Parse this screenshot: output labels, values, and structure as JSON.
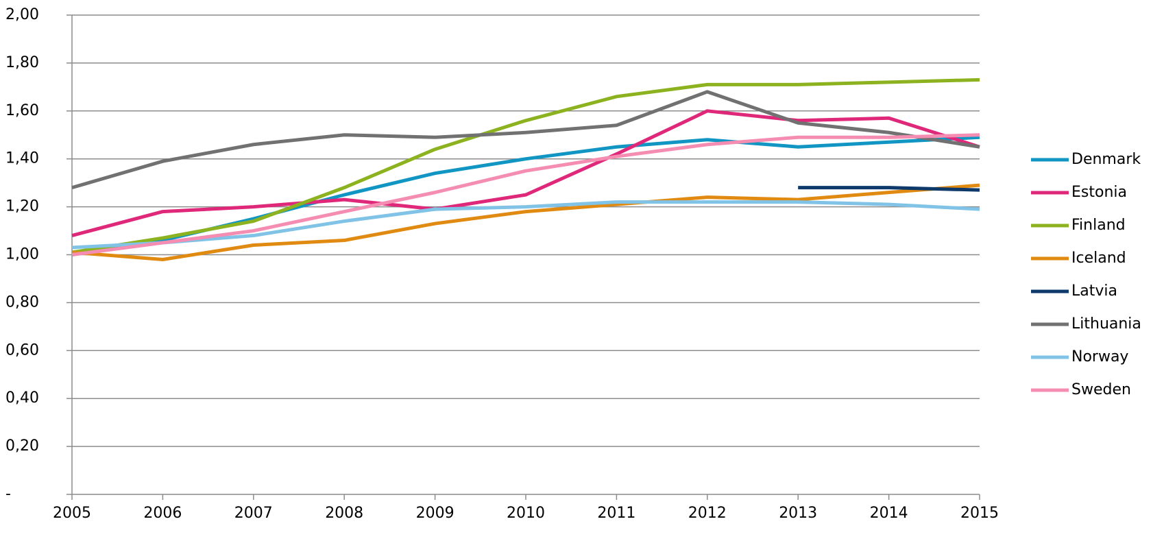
{
  "chart_data": {
    "type": "line",
    "x": [
      2005,
      2006,
      2007,
      2008,
      2009,
      2010,
      2011,
      2012,
      2013,
      2014,
      2015
    ],
    "xlim": [
      2005,
      2015
    ],
    "xticks": [
      2005,
      2006,
      2007,
      2008,
      2009,
      2010,
      2011,
      2012,
      2013,
      2014,
      2015
    ],
    "ylim": [
      0,
      2
    ],
    "yticks": [
      {
        "value": 0,
        "label": "-"
      },
      {
        "value": 0.2,
        "label": "0,20"
      },
      {
        "value": 0.4,
        "label": "0,40"
      },
      {
        "value": 0.6,
        "label": "0,60"
      },
      {
        "value": 0.8,
        "label": "0,80"
      },
      {
        "value": 1.0,
        "label": "1,00"
      },
      {
        "value": 1.2,
        "label": "1,20"
      },
      {
        "value": 1.4,
        "label": "1,40"
      },
      {
        "value": 1.6,
        "label": "1,60"
      },
      {
        "value": 1.8,
        "label": "1,80"
      },
      {
        "value": 2.0,
        "label": "2,00"
      }
    ],
    "grid": true,
    "legend": "right",
    "series": [
      {
        "name": "Denmark",
        "color": "#1196c3",
        "values": [
          1.0,
          1.06,
          1.15,
          1.25,
          1.34,
          1.4,
          1.45,
          1.48,
          1.45,
          1.47,
          1.49
        ]
      },
      {
        "name": "Estonia",
        "color": "#df2879",
        "values": [
          1.08,
          1.18,
          1.2,
          1.23,
          1.19,
          1.25,
          1.42,
          1.6,
          1.56,
          1.57,
          1.45
        ]
      },
      {
        "name": "Finland",
        "color": "#8cb31f",
        "values": [
          1.01,
          1.07,
          1.14,
          1.28,
          1.44,
          1.56,
          1.66,
          1.71,
          1.71,
          1.72,
          1.73
        ]
      },
      {
        "name": "Iceland",
        "color": "#e08a12",
        "values": [
          1.01,
          0.98,
          1.04,
          1.06,
          1.13,
          1.18,
          1.21,
          1.24,
          1.23,
          1.26,
          1.29
        ]
      },
      {
        "name": "Latvia",
        "color": "#0d3a6a",
        "values": [
          null,
          null,
          null,
          null,
          null,
          null,
          null,
          null,
          1.28,
          1.28,
          1.27
        ]
      },
      {
        "name": "Lithuania",
        "color": "#717171",
        "values": [
          1.28,
          1.39,
          1.46,
          1.5,
          1.49,
          1.51,
          1.54,
          1.68,
          1.55,
          1.51,
          1.45
        ]
      },
      {
        "name": "Norway",
        "color": "#80c3e6",
        "values": [
          1.03,
          1.05,
          1.08,
          1.14,
          1.19,
          1.2,
          1.22,
          1.22,
          1.22,
          1.21,
          1.19
        ]
      },
      {
        "name": "Sweden",
        "color": "#f48db1",
        "values": [
          1.0,
          1.05,
          1.1,
          1.18,
          1.26,
          1.35,
          1.41,
          1.46,
          1.49,
          1.49,
          1.5
        ]
      }
    ]
  }
}
